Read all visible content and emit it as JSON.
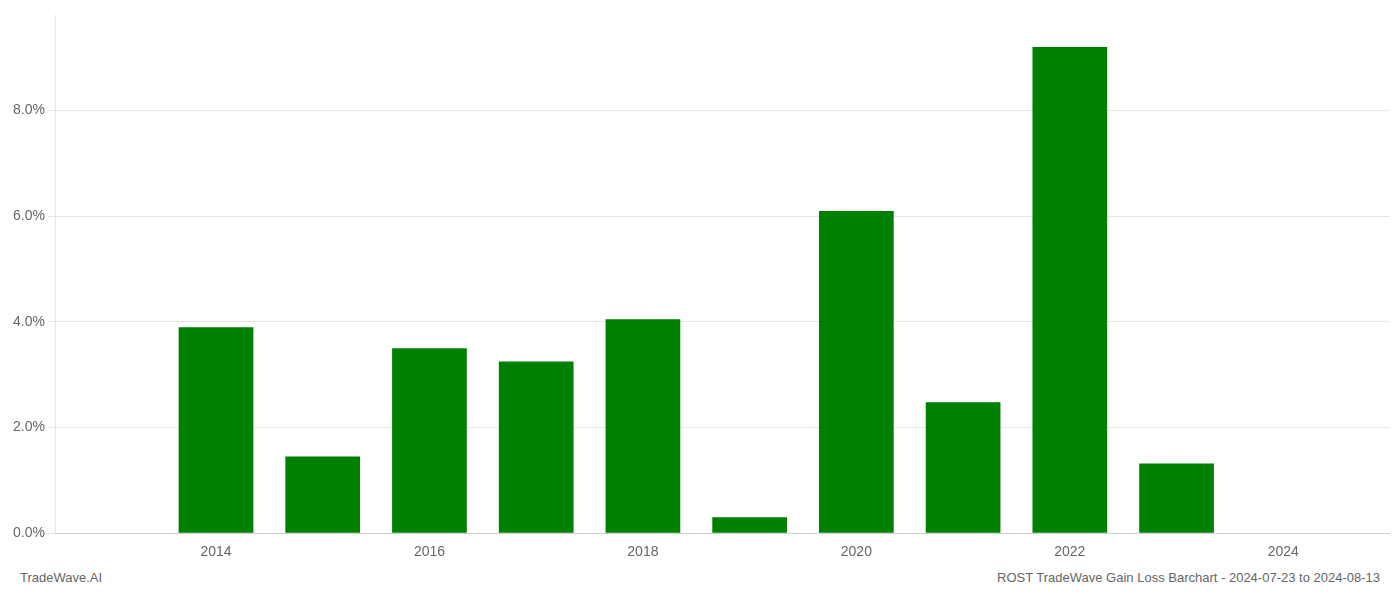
{
  "chart_data": {
    "type": "bar",
    "x": [
      2014,
      2015,
      2016,
      2017,
      2018,
      2019,
      2020,
      2021,
      2022,
      2023
    ],
    "values": [
      0.039,
      0.0145,
      0.035,
      0.0325,
      0.0405,
      0.003,
      0.061,
      0.0248,
      0.092,
      0.0132
    ],
    "color": "#008000",
    "xlim": [
      2012.5,
      2025.0
    ],
    "xticks": [
      2014,
      2016,
      2018,
      2020,
      2022,
      2024
    ],
    "ylim": [
      0,
      0.098
    ],
    "yticks": [
      {
        "value": 0.0,
        "label": "0.0%"
      },
      {
        "value": 0.02,
        "label": "2.0%"
      },
      {
        "value": 0.04,
        "label": "4.0%"
      },
      {
        "value": 0.06,
        "label": "6.0%"
      },
      {
        "value": 0.08,
        "label": "8.0%"
      }
    ],
    "grid": "y",
    "annotations": [
      "TradeWave.AI",
      "ROST TradeWave Gain Loss Barchart - 2024-07-23 to 2024-08-13"
    ]
  }
}
